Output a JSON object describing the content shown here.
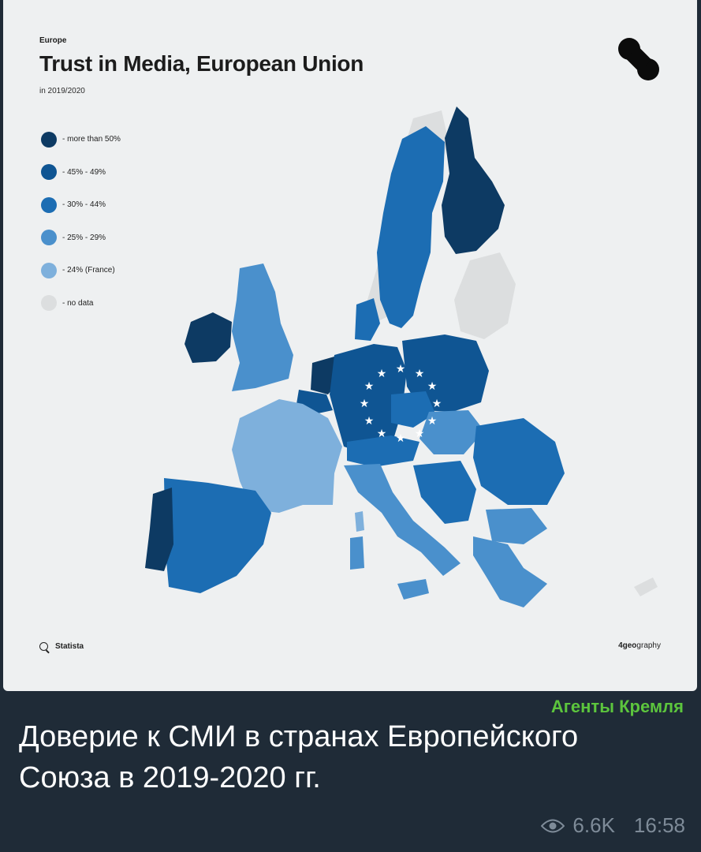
{
  "infographic": {
    "eyebrow": "Europe",
    "title": "Trust in Media, European Union",
    "subtitle": "in 2019/2020",
    "legend": [
      {
        "label": "- more than 50%",
        "color": "#0d3a63"
      },
      {
        "label": "- 45% - 49%",
        "color": "#0f5593"
      },
      {
        "label": "- 30% - 44%",
        "color": "#1c6db3"
      },
      {
        "label": "- 25% - 29%",
        "color": "#4a90cc"
      },
      {
        "label": "- 24% (France)",
        "color": "#7eb0dc"
      },
      {
        "label": "- no data",
        "color": "#dcdedf"
      }
    ],
    "source": "Statista",
    "credit_bold": "4geo",
    "credit_rest": "graphy",
    "logo_icon": "4geography-dots-logo"
  },
  "post": {
    "channel": "Агенты Кремля",
    "caption": "Доверие к СМИ в странах Европейского Союза в 2019-2020 гг.",
    "views_icon": "eye-icon",
    "views": "6.6K",
    "time": "16:58"
  }
}
